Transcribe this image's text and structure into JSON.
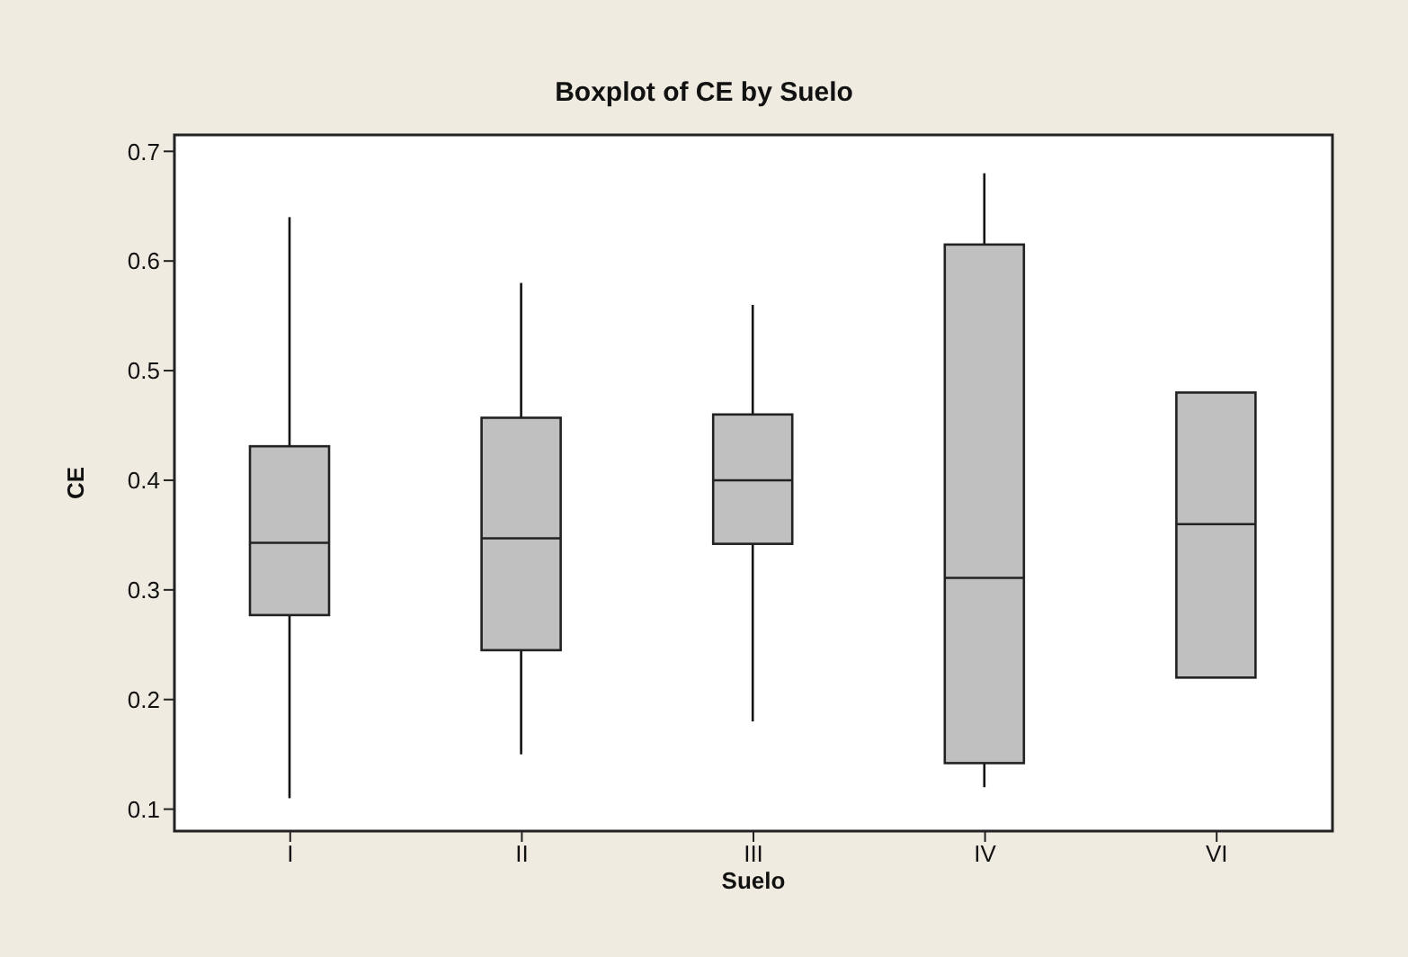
{
  "chart_data": {
    "type": "box",
    "title": "Boxplot of CE by Suelo",
    "xlabel": "Suelo",
    "ylabel": "CE",
    "categories": [
      "I",
      "II",
      "III",
      "IV",
      "VI"
    ],
    "color": "#c0c0c0",
    "boxes": [
      {
        "low": 0.11,
        "q1": 0.277,
        "median": 0.343,
        "q3": 0.431,
        "high": 0.64
      },
      {
        "low": 0.15,
        "q1": 0.245,
        "median": 0.347,
        "q3": 0.457,
        "high": 0.58
      },
      {
        "low": 0.18,
        "q1": 0.342,
        "median": 0.4,
        "q3": 0.46,
        "high": 0.56
      },
      {
        "low": 0.12,
        "q1": 0.142,
        "median": 0.311,
        "q3": 0.615,
        "high": 0.68
      },
      {
        "low": 0.22,
        "q1": 0.22,
        "median": 0.36,
        "q3": 0.48,
        "high": 0.48
      }
    ],
    "ylim": [
      0.08,
      0.715
    ],
    "yticks": [
      0.1,
      0.2,
      0.3,
      0.4,
      0.5,
      0.6,
      0.7
    ]
  }
}
